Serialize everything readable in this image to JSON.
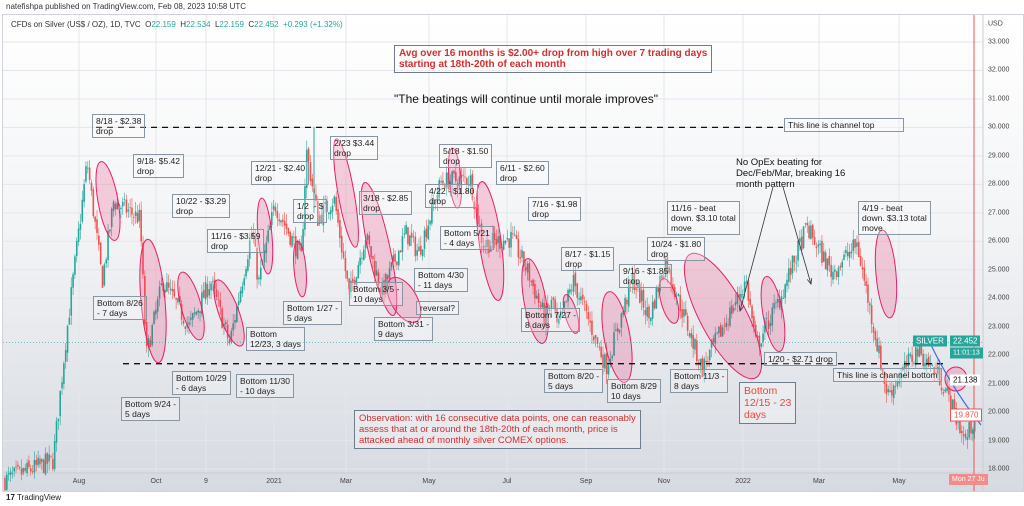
{
  "publisher_line": "natefishpa published on TradingView.com, Feb 08, 2023 10:58 UTC",
  "legend": {
    "symbol": "CFDs on Silver (US$ / OZ), 1D, TVC",
    "o_label": "O",
    "o": "22.159",
    "h_label": "H",
    "h": "22.534",
    "l_label": "L",
    "l": "22.159",
    "c_label": "C",
    "c": "22.452",
    "change": "+0.293 (+1.32%)"
  },
  "price_axis": {
    "currency": "USD",
    "ticks": [
      "33.000",
      "32.000",
      "31.000",
      "30.000",
      "29.000",
      "28.000",
      "27.000",
      "26.000",
      "25.000",
      "24.000",
      "23.000",
      "22.000",
      "21.000",
      "20.000",
      "19.000",
      "18.000"
    ],
    "symbol_tag": "SILVER",
    "last_price": "22.452",
    "countdown": "11:01:13",
    "crosshair_price": "21.138",
    "marked_price": "19.870"
  },
  "time_axis": {
    "ticks": [
      "Aug",
      "Oct",
      "9",
      "2021",
      "Mar",
      "May",
      "Jul",
      "Sep",
      "Nov",
      "2022",
      "Mar",
      "May"
    ],
    "cursor_label": "Mon 27 Ju"
  },
  "footer": {
    "brand": "TradingView",
    "logo": "17"
  },
  "colors": {
    "up": "#26a69a",
    "down": "#ef5350",
    "highlight": "#e91e63",
    "note_red": "#d32f2f"
  },
  "headline_note": "Avg over 16 months is $2.00+ drop from high over 7 trading days\nstarting at 18th-20th of each month",
  "quote": "\"The beatings will continue until morale improves\"",
  "opex_note": "No OpEx beating for\nDec/Feb/Mar, breaking 16\nmonth pattern",
  "observation": "Observation: with 16 consecutive data points, one can reasonably\nassess that at or around the 18th-20th of each month, price is\nattacked ahead of monthly silver COMEX options.",
  "bottom_1215": "Bottom\n12/15 - 23\ndays",
  "drop_labels": [
    "8/18 - $2.38\ndrop",
    "9/18- $5.42\ndrop",
    "10/22 - $3.29\ndrop",
    "11/16 - $3.59\ndrop",
    "12/21 - $2.40\ndrop",
    "1/2  - $\ndrop",
    "2/23 $3.44\ndrop",
    "3/18 - $2.85\ndrop",
    "4/22 - $1.80\ndrop",
    "5/18 - $1.50\ndrop",
    "6/11 - $2.60\ndrop",
    "7/16 - $1.98\ndrop",
    "8/17 - $1.15\ndrop",
    "9/16 - $1.85\ndrop",
    "10/24 - $1.80\ndrop",
    "11/16 - beat\ndown. $3.10 total\nmove",
    "1/20 - $2.71 drop",
    "4/19 - beat\ndown. $3.13 total\nmove"
  ],
  "bottom_labels": [
    "Bottom 8/26\n- 7 days",
    "Bottom 9/24 -\n5 days",
    "Bottom 10/29\n- 6 days",
    "Bottom 11/30\n- 10 days",
    "Bottom\n12/23, 3 days",
    "Bottom 1/27 -\n5 days",
    "Bottom 3/5 -\n10 days",
    "Bottom 3/31 -\n9 days",
    "reversal?",
    "Bottom 4/30\n- 11 days",
    "Bottom 5/21\n- 4 days",
    "Bottom 7/27 -\n8 days",
    "Bottom 8/20 -\n5 days",
    "Bottom 8/29\n10 days",
    "Bottom 11/3 -\n8 days"
  ],
  "channel_top_label": "This line is channel top",
  "channel_bottom_label": "This line is channel bottom",
  "chart_data": {
    "type": "candlestick",
    "title": "CFDs on Silver (US$ / OZ), 1D, TVC",
    "ylabel": "USD",
    "ylim": [
      18,
      33
    ],
    "channel_top": 30.0,
    "channel_bottom": 21.7,
    "approx_close_path": [
      {
        "date": "2020-06-01",
        "close": 17.6
      },
      {
        "date": "2020-07-10",
        "close": 18.3
      },
      {
        "date": "2020-07-20",
        "close": 22.5
      },
      {
        "date": "2020-08-07",
        "close": 28.8
      },
      {
        "date": "2020-08-19",
        "close": 24.6
      },
      {
        "date": "2020-08-28",
        "close": 27.4
      },
      {
        "date": "2020-09-19",
        "close": 26.8
      },
      {
        "date": "2020-09-24",
        "close": 22.0
      },
      {
        "date": "2020-10-07",
        "close": 24.6
      },
      {
        "date": "2020-10-28",
        "close": 23.0
      },
      {
        "date": "2020-11-15",
        "close": 24.6
      },
      {
        "date": "2020-11-30",
        "close": 22.4
      },
      {
        "date": "2020-12-18",
        "close": 26.4
      },
      {
        "date": "2020-12-23",
        "close": 24.5
      },
      {
        "date": "2021-01-06",
        "close": 27.3
      },
      {
        "date": "2021-01-27",
        "close": 25.4
      },
      {
        "date": "2021-02-01",
        "close": 29.2
      },
      {
        "date": "2021-02-10",
        "close": 26.8
      },
      {
        "date": "2021-02-23",
        "close": 27.5
      },
      {
        "date": "2021-03-05",
        "close": 24.1
      },
      {
        "date": "2021-03-18",
        "close": 26.2
      },
      {
        "date": "2021-03-31",
        "close": 24.2
      },
      {
        "date": "2021-04-20",
        "close": 26.3
      },
      {
        "date": "2021-04-30",
        "close": 25.6
      },
      {
        "date": "2021-05-18",
        "close": 28.1
      },
      {
        "date": "2021-06-11",
        "close": 28.2
      },
      {
        "date": "2021-06-21",
        "close": 25.9
      },
      {
        "date": "2021-07-14",
        "close": 26.1
      },
      {
        "date": "2021-07-27",
        "close": 24.9
      },
      {
        "date": "2021-08-10",
        "close": 23.3
      },
      {
        "date": "2021-08-17",
        "close": 23.9
      },
      {
        "date": "2021-08-20",
        "close": 22.9
      },
      {
        "date": "2021-09-03",
        "close": 24.6
      },
      {
        "date": "2021-09-29",
        "close": 21.6
      },
      {
        "date": "2021-10-20",
        "close": 24.7
      },
      {
        "date": "2021-11-03",
        "close": 23.3
      },
      {
        "date": "2021-11-16",
        "close": 25.3
      },
      {
        "date": "2021-12-15",
        "close": 21.5
      },
      {
        "date": "2022-01-04",
        "close": 23.2
      },
      {
        "date": "2022-01-20",
        "close": 24.6
      },
      {
        "date": "2022-01-28",
        "close": 22.3
      },
      {
        "date": "2022-02-18",
        "close": 24.1
      },
      {
        "date": "2022-03-08",
        "close": 26.5
      },
      {
        "date": "2022-03-28",
        "close": 24.9
      },
      {
        "date": "2022-04-18",
        "close": 25.9
      },
      {
        "date": "2022-05-12",
        "close": 20.6
      },
      {
        "date": "2022-06-06",
        "close": 22.2
      },
      {
        "date": "2022-06-24",
        "close": 21.2
      },
      {
        "date": "2022-07-14",
        "close": 19.0
      },
      {
        "date": "2022-07-22",
        "close": 19.9
      }
    ]
  }
}
